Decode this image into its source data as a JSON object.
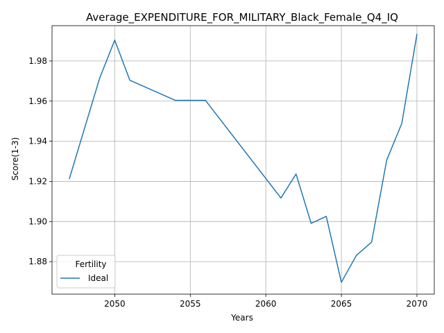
{
  "chart_data": {
    "type": "line",
    "title": "Average_EXPENDITURE_FOR_MILITARY_Black_Female_Q4_IQ",
    "xlabel": "Years",
    "ylabel": "Score(1-3)",
    "xlim": [
      2045.85,
      2071.15
    ],
    "ylim": [
      1.8638,
      1.9976
    ],
    "xticks": [
      2050,
      2055,
      2060,
      2065,
      2070
    ],
    "yticks": [
      1.88,
      1.9,
      1.92,
      1.94,
      1.96,
      1.98
    ],
    "ytick_labels": [
      "1.88",
      "1.90",
      "1.92",
      "1.94",
      "1.96",
      "1.98"
    ],
    "grid": true,
    "legend": {
      "title": "Fertility",
      "placement": "lower-left"
    },
    "series": [
      {
        "name": "Ideal",
        "color": "#1f77b4",
        "x": [
          2047,
          2049,
          2050,
          2051,
          2054,
          2056,
          2061,
          2062,
          2063,
          2064,
          2065,
          2066,
          2067,
          2068,
          2069,
          2070
        ],
        "y": [
          1.9214,
          1.9714,
          1.9904,
          1.9704,
          1.9604,
          1.9604,
          1.9117,
          1.9237,
          1.8991,
          1.9026,
          1.8697,
          1.8832,
          1.8897,
          1.9306,
          1.9489,
          1.9933
        ]
      }
    ]
  }
}
